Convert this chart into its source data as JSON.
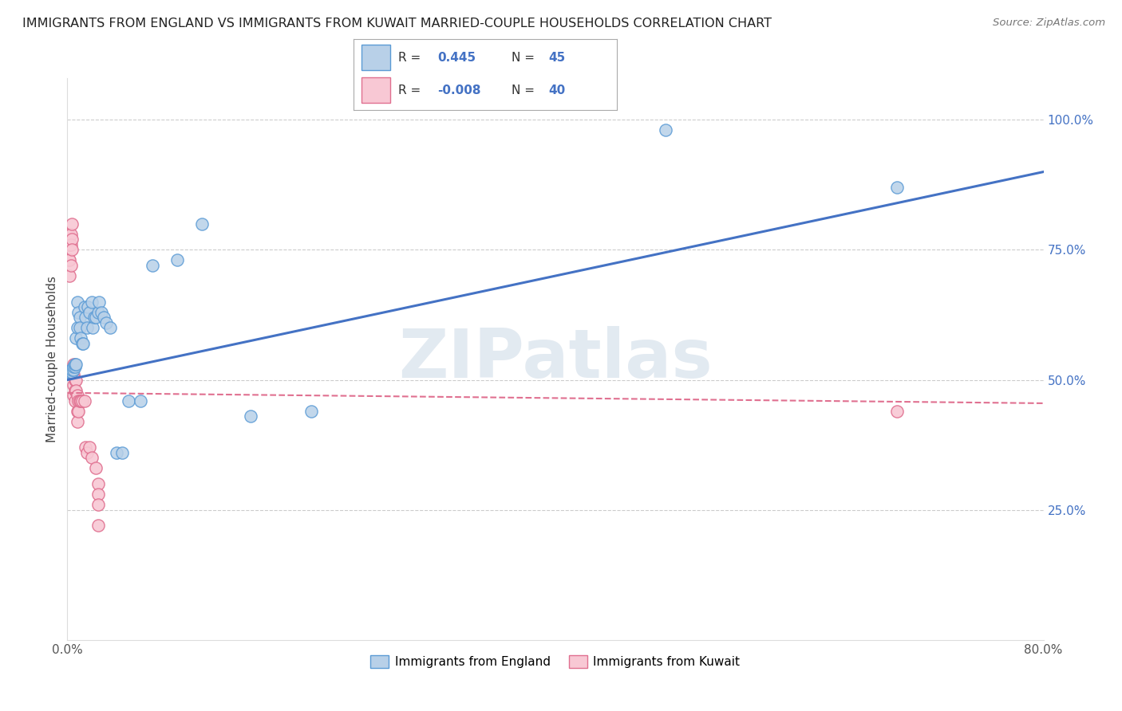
{
  "title": "IMMIGRANTS FROM ENGLAND VS IMMIGRANTS FROM KUWAIT MARRIED-COUPLE HOUSEHOLDS CORRELATION CHART",
  "source": "Source: ZipAtlas.com",
  "ylabel": "Married-couple Households",
  "xlim": [
    0.0,
    0.8
  ],
  "ylim": [
    0.0,
    1.08
  ],
  "x_ticks": [
    0.0,
    0.16,
    0.32,
    0.48,
    0.64,
    0.8
  ],
  "x_tick_labels": [
    "0.0%",
    "",
    "",
    "",
    "",
    "80.0%"
  ],
  "y_ticks_right": [
    0.25,
    0.5,
    0.75,
    1.0
  ],
  "y_tick_labels_right": [
    "25.0%",
    "50.0%",
    "75.0%",
    "100.0%"
  ],
  "england_color": "#b8d0e8",
  "england_edge_color": "#5b9bd5",
  "kuwait_color": "#f8c8d4",
  "kuwait_edge_color": "#e07090",
  "trend_england_color": "#4472c4",
  "trend_kuwait_color": "#e07090",
  "legend_r_color": "#4472c4",
  "watermark_text": "ZIPatlas",
  "watermark_color": "#d0dce8",
  "background_color": "#ffffff",
  "grid_color": "#cccccc",
  "england_x": [
    0.002,
    0.003,
    0.003,
    0.004,
    0.004,
    0.005,
    0.005,
    0.006,
    0.006,
    0.007,
    0.007,
    0.008,
    0.008,
    0.009,
    0.01,
    0.01,
    0.011,
    0.012,
    0.013,
    0.014,
    0.015,
    0.016,
    0.017,
    0.018,
    0.02,
    0.021,
    0.022,
    0.023,
    0.025,
    0.026,
    0.028,
    0.03,
    0.032,
    0.035,
    0.04,
    0.045,
    0.05,
    0.06,
    0.07,
    0.09,
    0.11,
    0.15,
    0.2,
    0.49,
    0.68
  ],
  "england_y": [
    0.515,
    0.515,
    0.52,
    0.515,
    0.52,
    0.52,
    0.525,
    0.525,
    0.53,
    0.53,
    0.58,
    0.6,
    0.65,
    0.63,
    0.62,
    0.6,
    0.58,
    0.57,
    0.57,
    0.64,
    0.62,
    0.6,
    0.64,
    0.63,
    0.65,
    0.6,
    0.62,
    0.62,
    0.63,
    0.65,
    0.63,
    0.62,
    0.61,
    0.6,
    0.36,
    0.36,
    0.46,
    0.46,
    0.72,
    0.73,
    0.8,
    0.43,
    0.44,
    0.98,
    0.87
  ],
  "kuwait_x": [
    0.001,
    0.001,
    0.001,
    0.002,
    0.002,
    0.002,
    0.003,
    0.003,
    0.003,
    0.004,
    0.004,
    0.004,
    0.005,
    0.005,
    0.005,
    0.005,
    0.006,
    0.006,
    0.006,
    0.007,
    0.007,
    0.008,
    0.008,
    0.008,
    0.009,
    0.009,
    0.01,
    0.011,
    0.012,
    0.014,
    0.015,
    0.016,
    0.018,
    0.02,
    0.023,
    0.025,
    0.025,
    0.025,
    0.025,
    0.68
  ],
  "kuwait_y": [
    0.78,
    0.76,
    0.73,
    0.76,
    0.73,
    0.7,
    0.78,
    0.76,
    0.72,
    0.8,
    0.77,
    0.75,
    0.53,
    0.51,
    0.49,
    0.47,
    0.5,
    0.48,
    0.46,
    0.5,
    0.48,
    0.47,
    0.44,
    0.42,
    0.46,
    0.44,
    0.46,
    0.46,
    0.46,
    0.46,
    0.37,
    0.36,
    0.37,
    0.35,
    0.33,
    0.3,
    0.28,
    0.26,
    0.22,
    0.44
  ],
  "eng_trend_x0": 0.0,
  "eng_trend_y0": 0.5,
  "eng_trend_x1": 0.8,
  "eng_trend_y1": 0.9,
  "kuw_trend_x0": 0.0,
  "kuw_trend_y0": 0.475,
  "kuw_trend_x1": 0.8,
  "kuw_trend_y1": 0.455
}
